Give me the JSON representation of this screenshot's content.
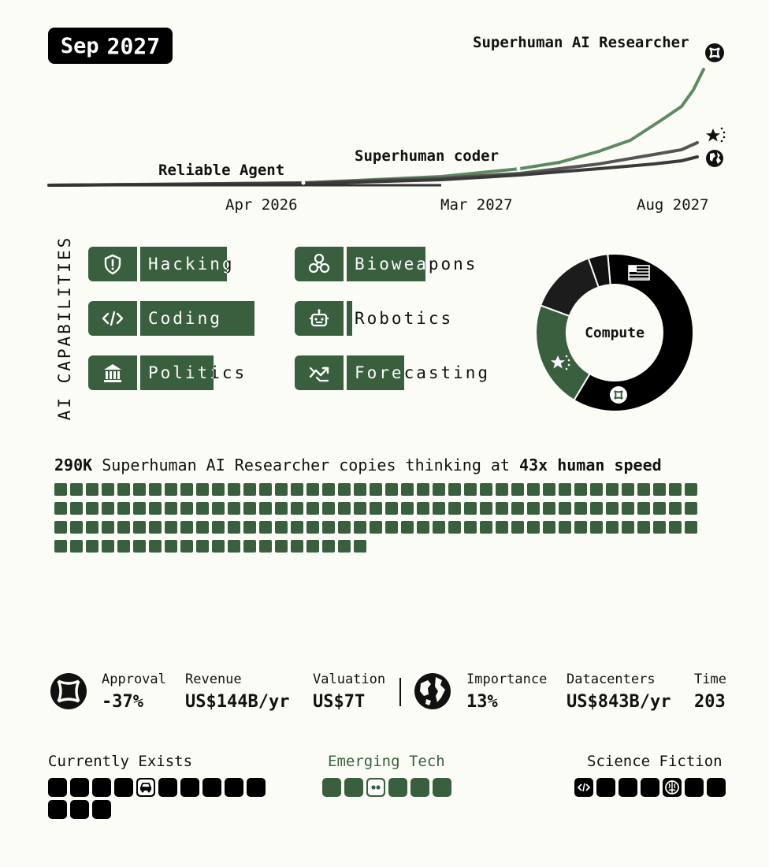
{
  "date": {
    "month": "Sep",
    "year": "2027"
  },
  "timeline": {
    "milestones": [
      {
        "label": "Reliable Agent"
      },
      {
        "label": "Superhuman coder"
      },
      {
        "label": "Superhuman AI Researcher"
      }
    ],
    "ticks": [
      "Apr 2026",
      "Mar 2027",
      "Aug 2027"
    ],
    "series": [
      {
        "icon": "openbrain-logo-icon",
        "color": "#5e8a62"
      },
      {
        "icon": "china-flag-icon",
        "color": "#555555"
      },
      {
        "icon": "globe-icon",
        "color": "#3a3a3a"
      }
    ]
  },
  "capabilities": {
    "title": "AI CAPABILITIES",
    "items": [
      {
        "label": "Hacking",
        "icon": "shield-icon",
        "level": 0.76
      },
      {
        "label": "Coding",
        "icon": "code-icon",
        "level": 1.0
      },
      {
        "label": "Politics",
        "icon": "government-building-icon",
        "level": 0.64
      },
      {
        "label": "Bioweapons",
        "icon": "biohazard-icon",
        "level": 0.69
      },
      {
        "label": "Robotics",
        "icon": "robot-icon",
        "level": 0.05
      },
      {
        "label": "Forecasting",
        "icon": "trend-arrow-icon",
        "level": 0.5
      }
    ]
  },
  "compute": {
    "label": "Compute",
    "segments": [
      {
        "icon": "usa-flag-icon",
        "share": 0.6,
        "color": "#000000"
      },
      {
        "icon": "openbrain-logo-icon",
        "share": 0.22,
        "color": "#3a5f3f"
      },
      {
        "icon": "china-flag-icon",
        "share": 0.14,
        "color": "#1c1c1c"
      },
      {
        "icon": "other-icon",
        "share": 0.04,
        "color": "#111111"
      }
    ]
  },
  "copies": {
    "count": "290K",
    "text": "Superhuman AI Researcher copies thinking at",
    "speed": "43x human speed",
    "squares": 143
  },
  "stats": {
    "openbrain": {
      "icon": "openbrain-logo-icon",
      "approval_label": "Approval",
      "approval": "-37%",
      "revenue_label": "Revenue",
      "revenue": "US$144B/yr",
      "valuation_label": "Valuation",
      "valuation": "US$7T"
    },
    "world": {
      "icon": "globe-icon",
      "importance_label": "Importance",
      "importance": "13%",
      "datacenters_label": "Datacenters",
      "datacenters": "US$843B/yr",
      "time_label": "Time",
      "time": "203"
    }
  },
  "tech": {
    "exists": {
      "label": "Currently Exists",
      "count": 13,
      "special_index": 4,
      "special_icon": "car-icon",
      "color": "#000000"
    },
    "emerging": {
      "label": "Emerging Tech",
      "count": 6,
      "special_index": 2,
      "special_icon": "dots-icon",
      "color": "#3a5f3f"
    },
    "scifi": {
      "label": "Science Fiction",
      "count": 7,
      "special_indices": [
        0,
        4
      ],
      "special_icons": [
        "code-icon",
        "brain-icon"
      ],
      "color": "#000000"
    }
  }
}
